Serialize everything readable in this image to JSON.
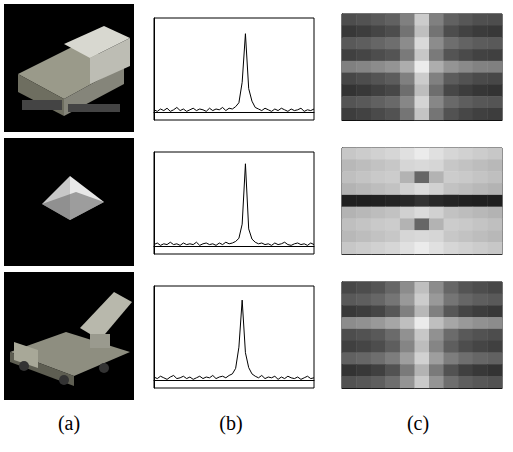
{
  "labels": [
    "(a)",
    "(b)",
    "(c)"
  ],
  "chart_data": [
    {
      "type": "line",
      "color": "#000000",
      "grid": false,
      "tick_labels": false,
      "ylim": [
        -0.1,
        1.2
      ],
      "values": [
        0.03,
        0.01,
        0.04,
        0.02,
        0.05,
        0.01,
        0.03,
        0.06,
        0.02,
        0.04,
        0.01,
        0.03,
        0.05,
        0.02,
        0.04,
        0.03,
        0.01,
        0.05,
        0.02,
        0.04,
        0.03,
        0.06,
        0.02,
        0.05,
        0.04,
        0.07,
        0.12,
        0.38,
        1.0,
        0.3,
        0.14,
        0.06,
        0.04,
        0.02,
        0.05,
        0.03,
        0.01,
        0.04,
        0.02,
        0.05,
        0.03,
        0.01,
        0.04,
        0.02,
        0.03,
        0.05,
        0.01,
        0.03,
        0.02,
        0.04
      ]
    },
    {
      "type": "line",
      "color": "#000000",
      "grid": false,
      "tick_labels": false,
      "ylim": [
        -0.1,
        1.2
      ],
      "values": [
        0.02,
        0.04,
        0.01,
        0.03,
        0.02,
        0.05,
        0.02,
        0.03,
        0.01,
        0.04,
        0.02,
        0.03,
        0.02,
        0.05,
        0.01,
        0.03,
        0.04,
        0.02,
        0.03,
        0.01,
        0.04,
        0.02,
        0.05,
        0.03,
        0.04,
        0.06,
        0.1,
        0.28,
        1.05,
        0.22,
        0.09,
        0.05,
        0.03,
        0.04,
        0.02,
        0.03,
        0.01,
        0.04,
        0.02,
        0.03,
        0.05,
        0.02,
        0.01,
        0.03,
        0.04,
        0.02,
        0.03,
        0.01,
        0.04,
        0.02
      ]
    },
    {
      "type": "line",
      "color": "#000000",
      "grid": false,
      "tick_labels": false,
      "ylim": [
        -0.1,
        1.2
      ],
      "values": [
        0.04,
        0.02,
        0.05,
        0.03,
        0.01,
        0.04,
        0.06,
        0.02,
        0.03,
        0.05,
        0.02,
        0.04,
        0.01,
        0.03,
        0.05,
        0.02,
        0.04,
        0.03,
        0.06,
        0.02,
        0.04,
        0.05,
        0.03,
        0.06,
        0.08,
        0.15,
        0.42,
        1.02,
        0.35,
        0.16,
        0.08,
        0.05,
        0.03,
        0.06,
        0.02,
        0.04,
        0.03,
        0.05,
        0.01,
        0.04,
        0.02,
        0.05,
        0.03,
        0.02,
        0.04,
        0.01,
        0.03,
        0.05,
        0.02,
        0.03
      ]
    },
    {
      "type": "heatmap",
      "tick_labels": false,
      "zlim": [
        0,
        1
      ],
      "cells": [
        [
          0.3,
          0.32,
          0.35,
          0.38,
          0.5,
          0.8,
          0.5,
          0.38,
          0.34,
          0.31,
          0.3
        ],
        [
          0.22,
          0.24,
          0.27,
          0.3,
          0.45,
          0.75,
          0.45,
          0.3,
          0.26,
          0.23,
          0.22
        ],
        [
          0.35,
          0.37,
          0.4,
          0.43,
          0.55,
          0.85,
          0.55,
          0.43,
          0.39,
          0.36,
          0.35
        ],
        [
          0.25,
          0.27,
          0.3,
          0.33,
          0.48,
          0.78,
          0.48,
          0.33,
          0.29,
          0.26,
          0.25
        ],
        [
          0.5,
          0.52,
          0.55,
          0.58,
          0.68,
          0.92,
          0.68,
          0.58,
          0.54,
          0.51,
          0.5
        ],
        [
          0.28,
          0.3,
          0.33,
          0.36,
          0.5,
          0.8,
          0.5,
          0.36,
          0.32,
          0.29,
          0.28
        ],
        [
          0.2,
          0.22,
          0.25,
          0.28,
          0.43,
          0.74,
          0.43,
          0.28,
          0.24,
          0.21,
          0.2
        ],
        [
          0.33,
          0.35,
          0.38,
          0.41,
          0.53,
          0.83,
          0.53,
          0.41,
          0.37,
          0.34,
          0.33
        ],
        [
          0.24,
          0.26,
          0.29,
          0.32,
          0.46,
          0.77,
          0.46,
          0.32,
          0.28,
          0.25,
          0.24
        ]
      ]
    },
    {
      "type": "heatmap",
      "tick_labels": false,
      "zlim": [
        0,
        1
      ],
      "cells": [
        [
          0.78,
          0.8,
          0.82,
          0.84,
          0.88,
          0.92,
          0.88,
          0.84,
          0.82,
          0.8,
          0.78
        ],
        [
          0.72,
          0.74,
          0.76,
          0.78,
          0.84,
          0.85,
          0.84,
          0.78,
          0.76,
          0.74,
          0.72
        ],
        [
          0.75,
          0.77,
          0.79,
          0.8,
          0.7,
          0.4,
          0.7,
          0.8,
          0.79,
          0.77,
          0.75
        ],
        [
          0.7,
          0.72,
          0.74,
          0.76,
          0.82,
          0.86,
          0.82,
          0.76,
          0.74,
          0.72,
          0.7
        ],
        [
          0.12,
          0.12,
          0.13,
          0.14,
          0.16,
          0.2,
          0.16,
          0.14,
          0.13,
          0.12,
          0.12
        ],
        [
          0.7,
          0.72,
          0.74,
          0.76,
          0.82,
          0.86,
          0.82,
          0.76,
          0.74,
          0.72,
          0.7
        ],
        [
          0.75,
          0.77,
          0.79,
          0.8,
          0.7,
          0.4,
          0.7,
          0.8,
          0.79,
          0.77,
          0.75
        ],
        [
          0.72,
          0.74,
          0.76,
          0.78,
          0.84,
          0.85,
          0.84,
          0.78,
          0.76,
          0.74,
          0.72
        ],
        [
          0.78,
          0.8,
          0.82,
          0.84,
          0.88,
          0.92,
          0.88,
          0.84,
          0.82,
          0.8,
          0.78
        ]
      ]
    },
    {
      "type": "heatmap",
      "tick_labels": false,
      "zlim": [
        0,
        1
      ],
      "cells": [
        [
          0.28,
          0.3,
          0.33,
          0.4,
          0.55,
          0.75,
          0.55,
          0.4,
          0.33,
          0.3,
          0.28
        ],
        [
          0.35,
          0.37,
          0.4,
          0.46,
          0.6,
          0.8,
          0.6,
          0.46,
          0.4,
          0.37,
          0.35
        ],
        [
          0.22,
          0.24,
          0.27,
          0.34,
          0.5,
          0.72,
          0.5,
          0.34,
          0.27,
          0.24,
          0.22
        ],
        [
          0.55,
          0.57,
          0.6,
          0.65,
          0.75,
          0.92,
          0.75,
          0.65,
          0.6,
          0.57,
          0.55
        ],
        [
          0.3,
          0.32,
          0.35,
          0.42,
          0.57,
          0.78,
          0.57,
          0.42,
          0.35,
          0.32,
          0.3
        ],
        [
          0.25,
          0.27,
          0.3,
          0.37,
          0.52,
          0.74,
          0.52,
          0.37,
          0.3,
          0.27,
          0.25
        ],
        [
          0.38,
          0.4,
          0.43,
          0.49,
          0.62,
          0.82,
          0.62,
          0.49,
          0.43,
          0.4,
          0.38
        ],
        [
          0.2,
          0.22,
          0.25,
          0.32,
          0.48,
          0.7,
          0.48,
          0.32,
          0.25,
          0.22,
          0.2
        ],
        [
          0.32,
          0.34,
          0.37,
          0.43,
          0.58,
          0.79,
          0.58,
          0.43,
          0.37,
          0.34,
          0.32
        ]
      ]
    }
  ]
}
